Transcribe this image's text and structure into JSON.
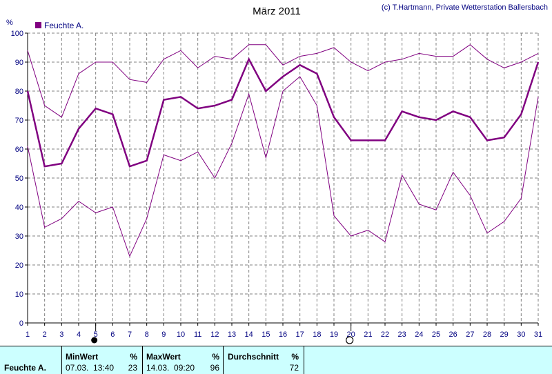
{
  "title": "März 2011",
  "copyright": "(c) T.Hartmann, Private Wetterstation Ballersbach",
  "legend": {
    "label": "Feuchte A.",
    "color": "#800080"
  },
  "colors": {
    "series": "#800080",
    "axis_text": "#000080",
    "grid": "#808080",
    "stats_bg": "#ccffff"
  },
  "chart_data": {
    "type": "line",
    "title": "März 2011",
    "ylabel": "%",
    "ylim": [
      0,
      100
    ],
    "yticks": [
      0,
      10,
      20,
      30,
      40,
      50,
      60,
      70,
      80,
      90,
      100
    ],
    "x": [
      1,
      2,
      3,
      4,
      5,
      6,
      7,
      8,
      9,
      10,
      11,
      12,
      13,
      14,
      15,
      16,
      17,
      18,
      19,
      20,
      21,
      22,
      23,
      24,
      25,
      26,
      27,
      28,
      29,
      30,
      31
    ],
    "xlim": [
      1,
      31
    ],
    "grid": true,
    "legend_position": "top-left",
    "markers": {
      "full_moon_day": 5,
      "new_moon_day": 20
    },
    "series": [
      {
        "name": "Feuchte A.",
        "role": "mean",
        "values": [
          80,
          54,
          55,
          67,
          74,
          72,
          54,
          56,
          77,
          78,
          74,
          75,
          77,
          91,
          80,
          85,
          89,
          86,
          71,
          63,
          63,
          63,
          73,
          71,
          70,
          73,
          71,
          63,
          64,
          72,
          90
        ]
      },
      {
        "role": "max",
        "values": [
          94,
          75,
          71,
          86,
          90,
          90,
          84,
          83,
          91,
          94,
          88,
          92,
          91,
          96,
          96,
          89,
          92,
          93,
          95,
          90,
          87,
          90,
          91,
          93,
          92,
          92,
          96,
          91,
          88,
          90,
          93
        ]
      },
      {
        "role": "min",
        "values": [
          61,
          33,
          36,
          42,
          38,
          40,
          23,
          36,
          58,
          56,
          59,
          50,
          62,
          79,
          57,
          80,
          85,
          75,
          37,
          30,
          32,
          28,
          51,
          41,
          39,
          52,
          44,
          31,
          35,
          43,
          78
        ]
      }
    ]
  },
  "stats": {
    "series_label": "Feuchte A.",
    "min": {
      "header": "MinWert",
      "unit": "%",
      "datetime": "07.03.  13:40",
      "value": "23"
    },
    "max": {
      "header": "MaxWert",
      "unit": "%",
      "datetime": "14.03.  09:20",
      "value": "96"
    },
    "avg": {
      "header": "Durchschnitt",
      "unit": "%",
      "value": "72"
    }
  }
}
